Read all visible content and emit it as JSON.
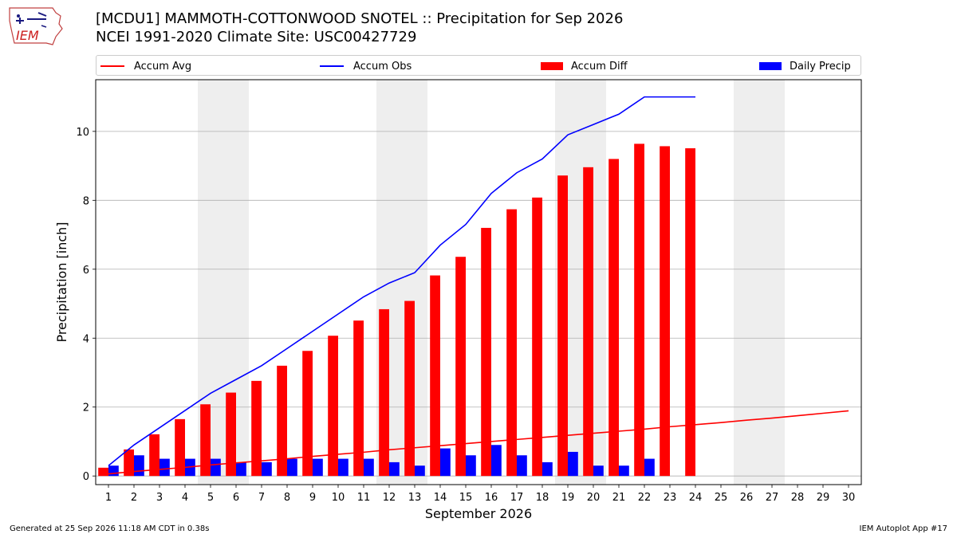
{
  "header": {
    "title_line1": "[MCDU1] MAMMOTH-COTTONWOOD SNOTEL :: Precipitation for Sep 2026",
    "title_line2": "NCEI 1991-2020 Climate Site: USC00427729",
    "logo_text": "IEM"
  },
  "footer": {
    "generated": "Generated at 25 Sep 2026 11:18 AM CDT in 0.38s",
    "app": "IEM Autoplot App #17"
  },
  "colors": {
    "accum_avg": "#ff0000",
    "accum_obs": "#0000ff",
    "accum_diff": "#ff0000",
    "daily_precip": "#0000ff",
    "weekend_shade": "#eeeeee",
    "grid": "#b0b0b0"
  },
  "chart_data": {
    "type": "bar",
    "xlabel": "September 2026",
    "ylabel": "Precipitation [inch]",
    "xlim": [
      0.5,
      30.5
    ],
    "ylim": [
      -0.25,
      11.5
    ],
    "yticks": [
      0,
      2,
      4,
      6,
      8,
      10
    ],
    "grid": "y",
    "legend_placement": "top",
    "days": [
      1,
      2,
      3,
      4,
      5,
      6,
      7,
      8,
      9,
      10,
      11,
      12,
      13,
      14,
      15,
      16,
      17,
      18,
      19,
      20,
      21,
      22,
      23,
      24,
      25,
      26,
      27,
      28,
      29,
      30
    ],
    "weekend_shaded_days": [
      [
        5,
        6
      ],
      [
        12,
        13
      ],
      [
        19,
        20
      ],
      [
        26,
        27
      ]
    ],
    "series": [
      {
        "name": "Accum Avg",
        "kind": "line",
        "values": [
          0.06,
          0.13,
          0.19,
          0.25,
          0.32,
          0.38,
          0.44,
          0.5,
          0.57,
          0.63,
          0.69,
          0.76,
          0.82,
          0.88,
          0.94,
          1.0,
          1.06,
          1.12,
          1.18,
          1.24,
          1.3,
          1.36,
          1.43,
          1.49,
          1.55,
          1.62,
          1.68,
          1.75,
          1.82,
          1.89
        ]
      },
      {
        "name": "Accum Obs",
        "kind": "line",
        "values": [
          0.3,
          0.9,
          1.4,
          1.9,
          2.4,
          2.8,
          3.2,
          3.7,
          4.2,
          4.7,
          5.2,
          5.6,
          5.9,
          6.7,
          7.3,
          8.2,
          8.8,
          9.2,
          9.9,
          10.2,
          10.5,
          11.0,
          11.0,
          11.0
        ]
      },
      {
        "name": "Accum Diff",
        "kind": "bar",
        "values": [
          0.24,
          0.77,
          1.21,
          1.65,
          2.08,
          2.42,
          2.76,
          3.2,
          3.63,
          4.07,
          4.51,
          4.84,
          5.08,
          5.82,
          6.36,
          7.2,
          7.74,
          8.08,
          8.72,
          8.96,
          9.2,
          9.64,
          9.57,
          9.51
        ]
      },
      {
        "name": "Daily Precip",
        "kind": "bar",
        "values": [
          0.3,
          0.6,
          0.5,
          0.5,
          0.5,
          0.4,
          0.4,
          0.5,
          0.5,
          0.5,
          0.5,
          0.4,
          0.3,
          0.8,
          0.6,
          0.9,
          0.6,
          0.4,
          0.7,
          0.3,
          0.3,
          0.5,
          0,
          0
        ]
      }
    ]
  }
}
